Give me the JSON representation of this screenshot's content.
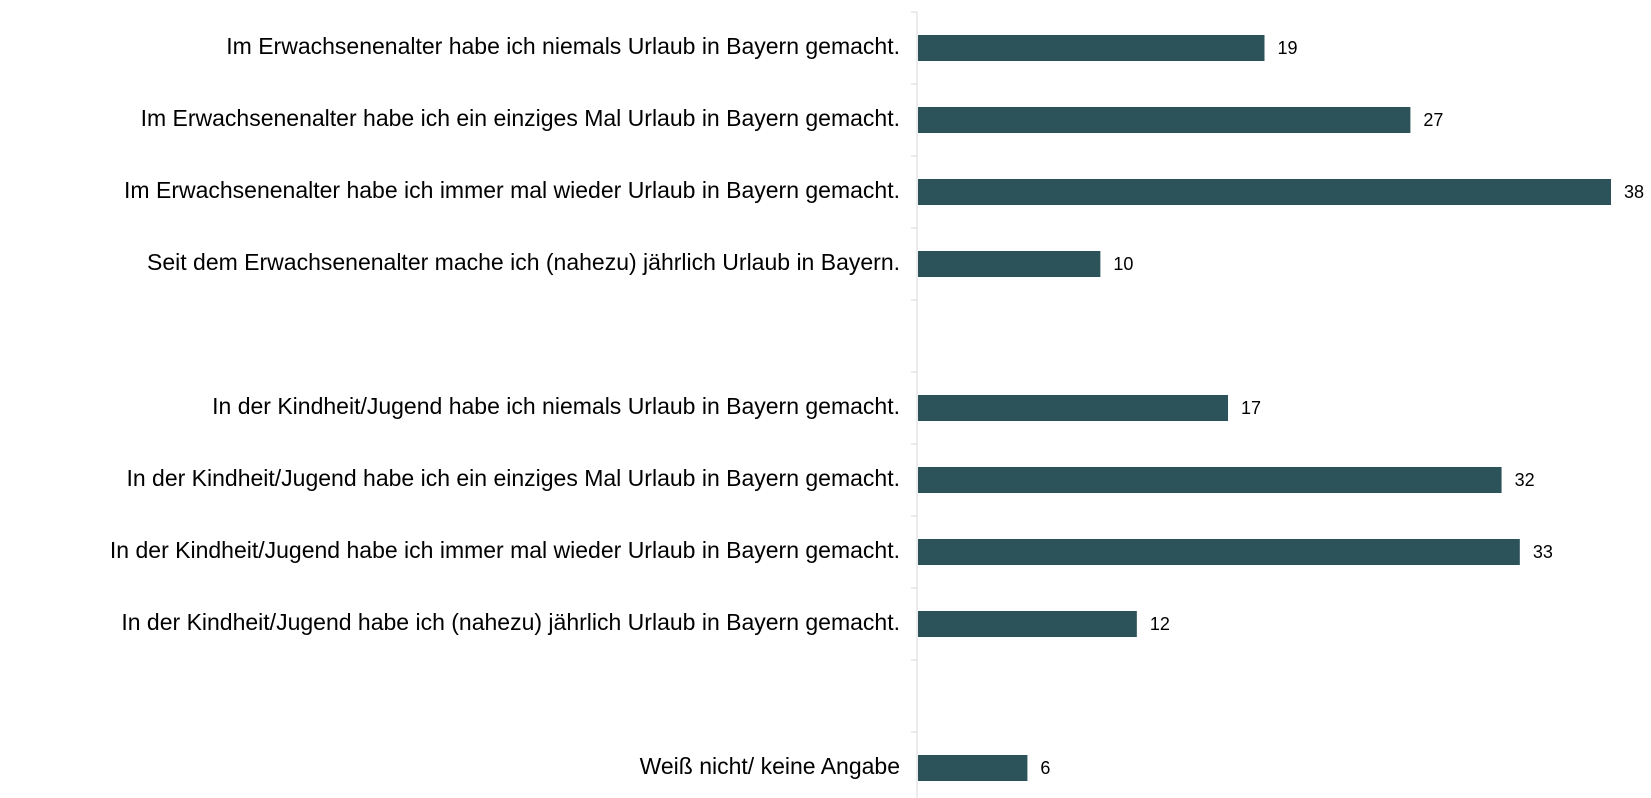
{
  "chart_data": {
    "type": "bar",
    "orientation": "horizontal",
    "categories": [
      "Im Erwachsenenalter habe ich niemals Urlaub in Bayern gemacht.",
      "Im Erwachsenenalter habe ich ein einziges Mal Urlaub in Bayern gemacht.",
      "Im Erwachsenenalter habe ich immer mal wieder Urlaub in Bayern gemacht.",
      "Seit dem Erwachsenenalter mache ich (nahezu) jährlich Urlaub in Bayern.",
      null,
      "In der Kindheit/Jugend habe ich niemals Urlaub in Bayern gemacht.",
      "In der Kindheit/Jugend habe ich ein einziges Mal Urlaub in Bayern gemacht.",
      "In der Kindheit/Jugend habe ich immer mal wieder Urlaub in Bayern gemacht.",
      "In der Kindheit/Jugend habe ich (nahezu) jährlich Urlaub in Bayern gemacht.",
      null,
      "Weiß nicht/ keine Angabe"
    ],
    "values": [
      19,
      27,
      38,
      10,
      null,
      17,
      32,
      33,
      12,
      null,
      6
    ],
    "color": "#2d535a"
  }
}
